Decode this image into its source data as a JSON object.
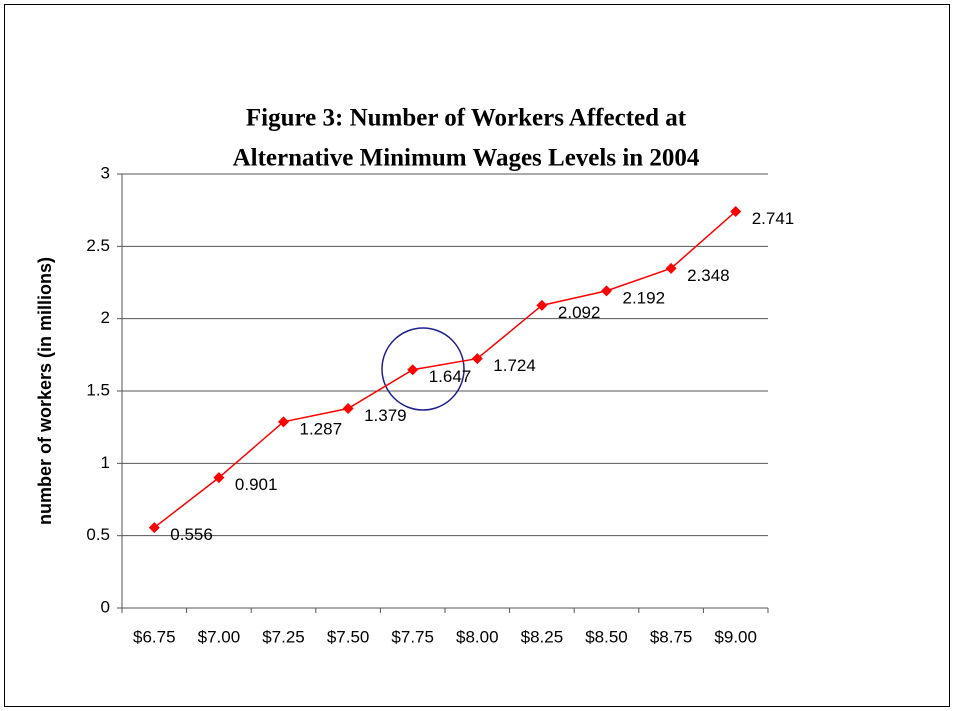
{
  "chart_data": {
    "type": "line",
    "title_lines": [
      "Figure 3: Number of Workers Affected at",
      "Alternative Minimum Wages Levels in 2004"
    ],
    "y_label": "number of workers (in millions)",
    "categories": [
      "$6.75",
      "$7.00",
      "$7.25",
      "$7.50",
      "$7.75",
      "$8.00",
      "$8.25",
      "$8.50",
      "$8.75",
      "$9.00"
    ],
    "series": [
      {
        "name": "workers",
        "color": "#ff0000",
        "values": [
          0.556,
          0.901,
          1.287,
          1.379,
          1.647,
          1.724,
          2.092,
          2.192,
          2.348,
          2.741
        ]
      }
    ],
    "ylim": [
      0,
      3
    ],
    "yticks": [
      0,
      0.5,
      1,
      1.5,
      2,
      2.5,
      3
    ],
    "grid": true
  }
}
